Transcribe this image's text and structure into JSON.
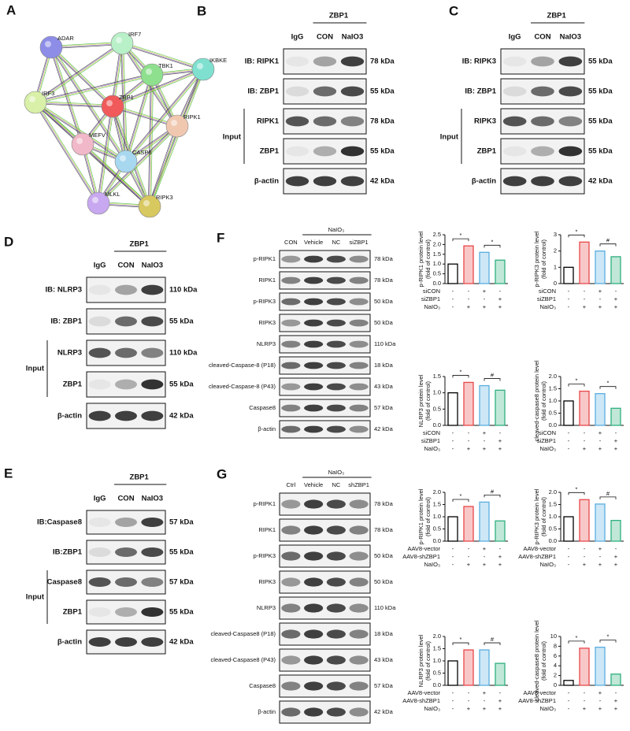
{
  "bar_colors": [
    "#000000",
    "#e8474a",
    "#5aaee0",
    "#2fb07f"
  ],
  "panels": [
    {
      "letter": "A",
      "nodes": [
        "ADAR",
        "IRF7",
        "TBK1",
        "IKBKE",
        "IRF3",
        "ZBP1",
        "RIPK1",
        "MEFV",
        "CASP8",
        "MLKL",
        "RIPK3"
      ]
    },
    {
      "letter": "B",
      "header": "ZBP1",
      "lanes": [
        "IgG",
        "CON",
        "NaIO3"
      ],
      "input": "Input",
      "rows": [
        {
          "label": "IB: RIPK1",
          "kda": "78 kDa"
        },
        {
          "label": "IB: ZBP1",
          "kda": "55 kDa"
        },
        {
          "label": "RIPK1",
          "kda": "78 kDa"
        },
        {
          "label": "ZBP1",
          "kda": "55 kDa"
        },
        {
          "label": "β-actin",
          "kda": "42 kDa"
        }
      ]
    },
    {
      "letter": "C",
      "header": "ZBP1",
      "lanes": [
        "IgG",
        "CON",
        "NaIO3"
      ],
      "input": "Input",
      "rows": [
        {
          "label": "IB: RIPK3",
          "kda": "55 kDa"
        },
        {
          "label": "IB: ZBP1",
          "kda": "55 kDa"
        },
        {
          "label": "RIPK3",
          "kda": "55 kDa"
        },
        {
          "label": "ZBP1",
          "kda": "55 kDa"
        },
        {
          "label": "β-actin",
          "kda": "42 kDa"
        }
      ]
    },
    {
      "letter": "D",
      "header": "ZBP1",
      "lanes": [
        "IgG",
        "CON",
        "NaIO3"
      ],
      "input": "Input",
      "rows": [
        {
          "label": "IB: NLRP3",
          "kda": "110 kDa"
        },
        {
          "label": "IB: ZBP1",
          "kda": "55 kDa"
        },
        {
          "label": "NLRP3",
          "kda": "110 kDa"
        },
        {
          "label": "ZBP1",
          "kda": "55 kDa"
        },
        {
          "label": "β-actin",
          "kda": "42 kDa"
        }
      ]
    },
    {
      "letter": "E",
      "header": "ZBP1",
      "lanes": [
        "IgG",
        "CON",
        "NaIO3"
      ],
      "input": "Input",
      "rows": [
        {
          "label": "IB:Caspase8",
          "kda": "57 kDa"
        },
        {
          "label": "IB:ZBP1",
          "kda": "55 kDa"
        },
        {
          "label": "Caspase8",
          "kda": "57 kDa"
        },
        {
          "label": "ZBP1",
          "kda": "55 kDa"
        },
        {
          "label": "β-actin",
          "kda": "42 kDa"
        }
      ]
    },
    {
      "letter": "F",
      "blot": {
        "group": "NaIO₃",
        "lanes": [
          "CON",
          "Vehicle",
          "NC",
          "siZBP1"
        ],
        "rows": [
          {
            "label": "p-RIPK1",
            "kda": "78 kDa"
          },
          {
            "label": "RIPK1",
            "kda": "78 kDa"
          },
          {
            "label": "p-RIPK3",
            "kda": "50 kDa"
          },
          {
            "label": "RIPK3",
            "kda": "50 kDa"
          },
          {
            "label": "NLRP3",
            "kda": "110 kDa"
          },
          {
            "label": "cleaved-Caspase-8 (P18)",
            "kda": "18 kDa"
          },
          {
            "label": "cleaved-Caspase-8 (P43)",
            "kda": "43 kDa"
          },
          {
            "label": "Caspase8",
            "kda": "57 kDa"
          },
          {
            "label": "β-actin",
            "kda": "42 kDa"
          }
        ]
      },
      "charts": [
        {
          "ylabel": [
            "p-RIPK1 protein level",
            "(fold of control)"
          ],
          "ylim": [
            0,
            2.5
          ],
          "yticks": [
            {
              "value": 0,
              "label": "0.0"
            },
            {
              "value": 0.5,
              "label": "0.5"
            },
            {
              "value": 1,
              "label": "1.0"
            },
            {
              "value": 1.5,
              "label": "1.5"
            },
            {
              "value": 2,
              "label": "2.0"
            },
            {
              "value": 2.5,
              "label": "2.5"
            }
          ],
          "values": [
            1.0,
            1.93,
            1.6,
            1.2
          ],
          "sig": [
            "*",
            "*"
          ],
          "conditions": [
            {
              "name": "siCON",
              "marks": [
                "-",
                "-",
                "+",
                "-"
              ]
            },
            {
              "name": "siZBP1",
              "marks": [
                "-",
                "-",
                "-",
                "+"
              ]
            },
            {
              "name": "NaIO₃",
              "marks": [
                "-",
                "+",
                "+",
                "+"
              ]
            }
          ]
        },
        {
          "ylabel": [
            "p-RIPK3 protein level",
            "(fold of control)"
          ],
          "ylim": [
            0,
            3
          ],
          "yticks": [
            0,
            1,
            2,
            3
          ],
          "values": [
            1.0,
            2.55,
            2.0,
            1.65
          ],
          "sig": [
            "*",
            "#"
          ],
          "conditions": [
            {
              "name": "siCON",
              "marks": [
                "-",
                "-",
                "+",
                "-"
              ]
            },
            {
              "name": "siZBP1",
              "marks": [
                "-",
                "-",
                "-",
                "+"
              ]
            },
            {
              "name": "NaIO₃",
              "marks": [
                "-",
                "+",
                "+",
                "+"
              ]
            }
          ]
        },
        {
          "ylabel": [
            "NLRP3 protein level",
            "(fold of control)"
          ],
          "ylim": [
            0,
            1.5
          ],
          "yticks": [
            {
              "value": 0,
              "label": "0.0"
            },
            {
              "value": 0.5,
              "label": "0.5"
            },
            {
              "value": 1,
              "label": "1.0"
            },
            {
              "value": 1.5,
              "label": "1.5"
            }
          ],
          "values": [
            1.0,
            1.32,
            1.22,
            1.08
          ],
          "sig": [
            "*",
            "#"
          ],
          "conditions": [
            {
              "name": "siCON",
              "marks": [
                "-",
                "-",
                "+",
                "-"
              ]
            },
            {
              "name": "siZBP1",
              "marks": [
                "-",
                "-",
                "-",
                "+"
              ]
            },
            {
              "name": "NaIO₃",
              "marks": [
                "-",
                "+",
                "+",
                "+"
              ]
            }
          ]
        },
        {
          "ylabel": [
            "cleaved-caspase8 protein level",
            "(fold of control)"
          ],
          "ylim": [
            0,
            2
          ],
          "yticks": [
            {
              "value": 0,
              "label": "0.0"
            },
            {
              "value": 0.5,
              "label": "0.5"
            },
            {
              "value": 1,
              "label": "1.0"
            },
            {
              "value": 1.5,
              "label": "1.5"
            },
            {
              "value": 2,
              "label": "2.0"
            }
          ],
          "values": [
            1.0,
            1.4,
            1.3,
            0.7
          ],
          "sig": [
            "*",
            "*"
          ],
          "conditions": [
            {
              "name": "siCON",
              "marks": [
                "-",
                "-",
                "+",
                "-"
              ]
            },
            {
              "name": "siZBP1",
              "marks": [
                "-",
                "-",
                "-",
                "+"
              ]
            },
            {
              "name": "NaIO₃",
              "marks": [
                "-",
                "+",
                "+",
                "+"
              ]
            }
          ]
        }
      ]
    },
    {
      "letter": "G",
      "blot": {
        "group": "NaIO₃",
        "lanes": [
          "Ctrl",
          "Vehicle",
          "NC",
          "shZBP1"
        ],
        "rows": [
          {
            "label": "p-RIPK1",
            "kda": "78 kDa"
          },
          {
            "label": "RIPK1",
            "kda": "78 kDa"
          },
          {
            "label": "p-RIPK3",
            "kda": "50 kDa"
          },
          {
            "label": "RIPK3",
            "kda": "50 kDa"
          },
          {
            "label": "NLRP3",
            "kda": "110 kDa"
          },
          {
            "label": "cleaved-Caspase8  (P18)",
            "kda": "18 kDa"
          },
          {
            "label": "cleaved-Caspase8  (P43)",
            "kda": "43 kDa"
          },
          {
            "label": "Caspase8",
            "kda": "57 kDa"
          },
          {
            "label": "β-actin",
            "kda": "42 kDa"
          }
        ]
      },
      "charts": [
        {
          "ylabel": [
            "p-RIPK1 protein level",
            "(fold of control)"
          ],
          "ylim": [
            0,
            2
          ],
          "yticks": [
            {
              "value": 0,
              "label": "0.0"
            },
            {
              "value": 0.5,
              "label": "0.5"
            },
            {
              "value": 1,
              "label": "1.0"
            },
            {
              "value": 1.5,
              "label": "1.5"
            },
            {
              "value": 2,
              "label": "2.0"
            }
          ],
          "values": [
            1.0,
            1.42,
            1.6,
            0.83
          ],
          "sig": [
            "*",
            "#"
          ],
          "conditions": [
            {
              "name": "AAV8-vector",
              "marks": [
                "-",
                "-",
                "+",
                "-"
              ]
            },
            {
              "name": "AAV8-shZBP1",
              "marks": [
                "-",
                "-",
                "-",
                "+"
              ]
            },
            {
              "name": "NaIO₃",
              "marks": [
                "-",
                "+",
                "+",
                "+"
              ]
            }
          ]
        },
        {
          "ylabel": [
            "p-RIPK3 protein level",
            "(fold of control)"
          ],
          "ylim": [
            0,
            2
          ],
          "yticks": [
            {
              "value": 0,
              "label": "0.0"
            },
            {
              "value": 0.5,
              "label": "0.5"
            },
            {
              "value": 1,
              "label": "1.0"
            },
            {
              "value": 1.5,
              "label": "1.5"
            },
            {
              "value": 2,
              "label": "2.0"
            }
          ],
          "values": [
            1.0,
            1.7,
            1.52,
            0.85
          ],
          "sig": [
            "*",
            "#"
          ],
          "conditions": [
            {
              "name": "AAV8-vector",
              "marks": [
                "-",
                "-",
                "+",
                "-"
              ]
            },
            {
              "name": "AAV8-shZBP1",
              "marks": [
                "-",
                "-",
                "-",
                "+"
              ]
            },
            {
              "name": "NaIO₃",
              "marks": [
                "-",
                "+",
                "+",
                "+"
              ]
            }
          ]
        },
        {
          "ylabel": [
            "NLRP3 protein level",
            "(fold of control)"
          ],
          "ylim": [
            0,
            2
          ],
          "yticks": [
            {
              "value": 0,
              "label": "0.0"
            },
            {
              "value": 0.5,
              "label": "0.5"
            },
            {
              "value": 1,
              "label": "1.0"
            },
            {
              "value": 1.5,
              "label": "1.5"
            },
            {
              "value": 2,
              "label": "2.0"
            }
          ],
          "values": [
            1.0,
            1.45,
            1.45,
            0.9
          ],
          "sig": [
            "*",
            "#"
          ],
          "conditions": [
            {
              "name": "AAV8-vector",
              "marks": [
                "-",
                "-",
                "+",
                "-"
              ]
            },
            {
              "name": "AAV8-shZBP1",
              "marks": [
                "-",
                "-",
                "-",
                "+"
              ]
            },
            {
              "name": "NaIO₃",
              "marks": [
                "-",
                "+",
                "+",
                "+"
              ]
            }
          ]
        },
        {
          "ylabel": [
            "cleaved-caspase8 protein level",
            "(fold of control)"
          ],
          "ylim": [
            0,
            10
          ],
          "yticks": [
            0,
            2,
            4,
            6,
            8,
            10
          ],
          "values": [
            1.0,
            7.6,
            7.8,
            2.3
          ],
          "sig": [
            "*",
            "*"
          ],
          "conditions": [
            {
              "name": "AAV8-vector",
              "marks": [
                "-",
                "-",
                "+",
                "-"
              ]
            },
            {
              "name": "AAV8-shZBP1",
              "marks": [
                "-",
                "-",
                "-",
                "+"
              ]
            },
            {
              "name": "NaIO₃",
              "marks": [
                "-",
                "+",
                "+",
                "+"
              ]
            }
          ]
        }
      ]
    }
  ]
}
